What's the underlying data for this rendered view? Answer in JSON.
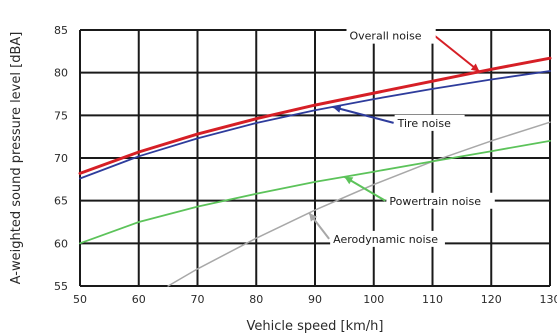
{
  "chart_data": {
    "type": "line",
    "title": "",
    "xlabel": "Vehicle speed [km/h]",
    "ylabel": "A-weighted sound pressure level [dBA]",
    "xlim": [
      50,
      130
    ],
    "ylim": [
      55,
      85
    ],
    "xticks": [
      50,
      60,
      70,
      80,
      90,
      100,
      110,
      120,
      130
    ],
    "yticks": [
      55,
      60,
      65,
      70,
      75,
      80,
      85
    ],
    "grid": true,
    "legend": "none",
    "series": [
      {
        "name": "Overall noise",
        "color": "#d61f26",
        "x": [
          50,
          60,
          70,
          80,
          90,
          100,
          110,
          120,
          130
        ],
        "y": [
          68.2,
          70.7,
          72.8,
          74.6,
          76.2,
          77.6,
          79.0,
          80.4,
          81.7
        ]
      },
      {
        "name": "Tire noise",
        "color": "#2e3c9c",
        "x": [
          50,
          60,
          70,
          80,
          90,
          100,
          110,
          120,
          130
        ],
        "y": [
          67.6,
          70.2,
          72.3,
          74.1,
          75.6,
          76.9,
          78.1,
          79.2,
          80.2
        ]
      },
      {
        "name": "Powertrain noise",
        "color": "#5cc35a",
        "x": [
          50,
          60,
          70,
          80,
          90,
          100,
          110,
          120,
          130
        ],
        "y": [
          60.0,
          62.5,
          64.3,
          65.8,
          67.2,
          68.4,
          69.6,
          70.8,
          72.0
        ]
      },
      {
        "name": "Aerodynamic noise",
        "color": "#a8a8a8",
        "x": [
          65,
          70,
          80,
          90,
          100,
          110,
          120,
          130
        ],
        "y": [
          55.0,
          57.0,
          60.6,
          63.9,
          66.9,
          69.6,
          72.0,
          74.2
        ]
      }
    ],
    "annotations": [
      {
        "text": "Overall noise",
        "series": 0,
        "arrow_at_x": 118
      },
      {
        "text": "Tire noise",
        "series": 1,
        "arrow_at_x": 93
      },
      {
        "text": "Powertrain noise",
        "series": 2,
        "arrow_at_x": 95
      },
      {
        "text": "Aerodynamic noise",
        "series": 3,
        "arrow_at_x": 89
      }
    ]
  }
}
